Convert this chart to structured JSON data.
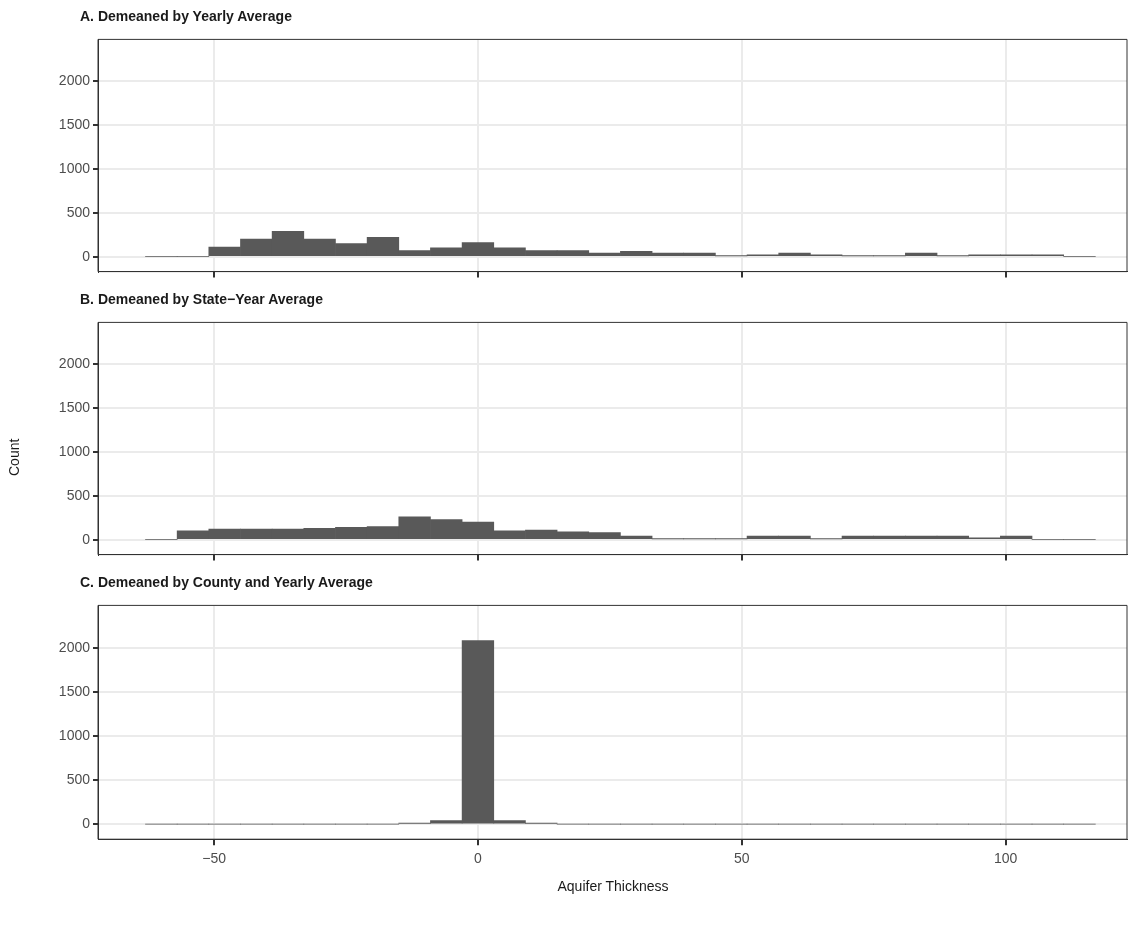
{
  "chart_data": [
    {
      "type": "histogram",
      "title": "A. Demeaned by Yearly Average",
      "bins": [
        -63,
        -57,
        -51,
        -45,
        -39,
        -33,
        -27,
        -21,
        -15,
        -9,
        -3,
        3,
        9,
        15,
        21,
        27,
        33,
        39,
        45,
        51,
        57,
        63,
        69,
        75,
        81,
        87,
        93,
        99,
        105,
        111,
        117
      ],
      "values": [
        0,
        0,
        110,
        200,
        290,
        200,
        150,
        220,
        70,
        100,
        160,
        100,
        70,
        70,
        40,
        60,
        40,
        40,
        10,
        20,
        40,
        20,
        10,
        10,
        40,
        10,
        20,
        20,
        20,
        0
      ],
      "color": "#595959",
      "xlim": [
        -72,
        123
      ],
      "ylim": [
        -170,
        2480
      ],
      "xticks": [
        {
          "value": -50,
          "label": null
        },
        {
          "value": 0,
          "label": null
        },
        {
          "value": 50,
          "label": null
        },
        {
          "value": 100,
          "label": null
        }
      ],
      "yticks": [
        0,
        500,
        1000,
        1500,
        2000
      ],
      "grid": true,
      "tick_labels": "y"
    },
    {
      "type": "histogram",
      "title": "B. Demeaned by State−Year Average",
      "ylabel": "Count",
      "bins": [
        -63,
        -57,
        -51,
        -45,
        -39,
        -33,
        -27,
        -21,
        -15,
        -9,
        -3,
        3,
        9,
        15,
        21,
        27,
        33,
        39,
        45,
        51,
        57,
        63,
        69,
        75,
        81,
        87,
        93,
        99,
        105,
        111,
        117
      ],
      "values": [
        0,
        100,
        120,
        120,
        120,
        130,
        140,
        150,
        260,
        230,
        200,
        100,
        110,
        90,
        80,
        40,
        10,
        10,
        10,
        40,
        40,
        10,
        40,
        40,
        40,
        40,
        20,
        40,
        0,
        0
      ],
      "color": "#595959",
      "xlim": [
        -72,
        123
      ],
      "ylim": [
        -170,
        2480
      ],
      "xticks": [
        {
          "value": -50,
          "label": null
        },
        {
          "value": 0,
          "label": null
        },
        {
          "value": 50,
          "label": null
        },
        {
          "value": 100,
          "label": null
        }
      ],
      "yticks": [
        0,
        500,
        1000,
        1500,
        2000
      ],
      "grid": true,
      "tick_labels": "y"
    },
    {
      "type": "histogram",
      "title": "C. Demeaned by County and Yearly Average",
      "xlabel": "Aquifer Thickness",
      "bins": [
        -63,
        -57,
        -51,
        -45,
        -39,
        -33,
        -27,
        -21,
        -15,
        -9,
        -3,
        3,
        9,
        15,
        21,
        27,
        33,
        39,
        45,
        51,
        57,
        63,
        69,
        75,
        81,
        87,
        93,
        99,
        105,
        111,
        117
      ],
      "values": [
        0,
        0,
        0,
        0,
        0,
        0,
        0,
        0,
        10,
        40,
        2080,
        40,
        10,
        0,
        0,
        0,
        0,
        0,
        0,
        0,
        0,
        0,
        0,
        0,
        0,
        0,
        0,
        0,
        0,
        0
      ],
      "color": "#595959",
      "xlim": [
        -72,
        123
      ],
      "ylim": [
        -170,
        2480
      ],
      "xticks": [
        {
          "value": -50,
          "label": "−50"
        },
        0,
        50,
        100
      ],
      "yticks": [
        0,
        500,
        1000,
        1500,
        2000
      ],
      "grid": true
    }
  ]
}
